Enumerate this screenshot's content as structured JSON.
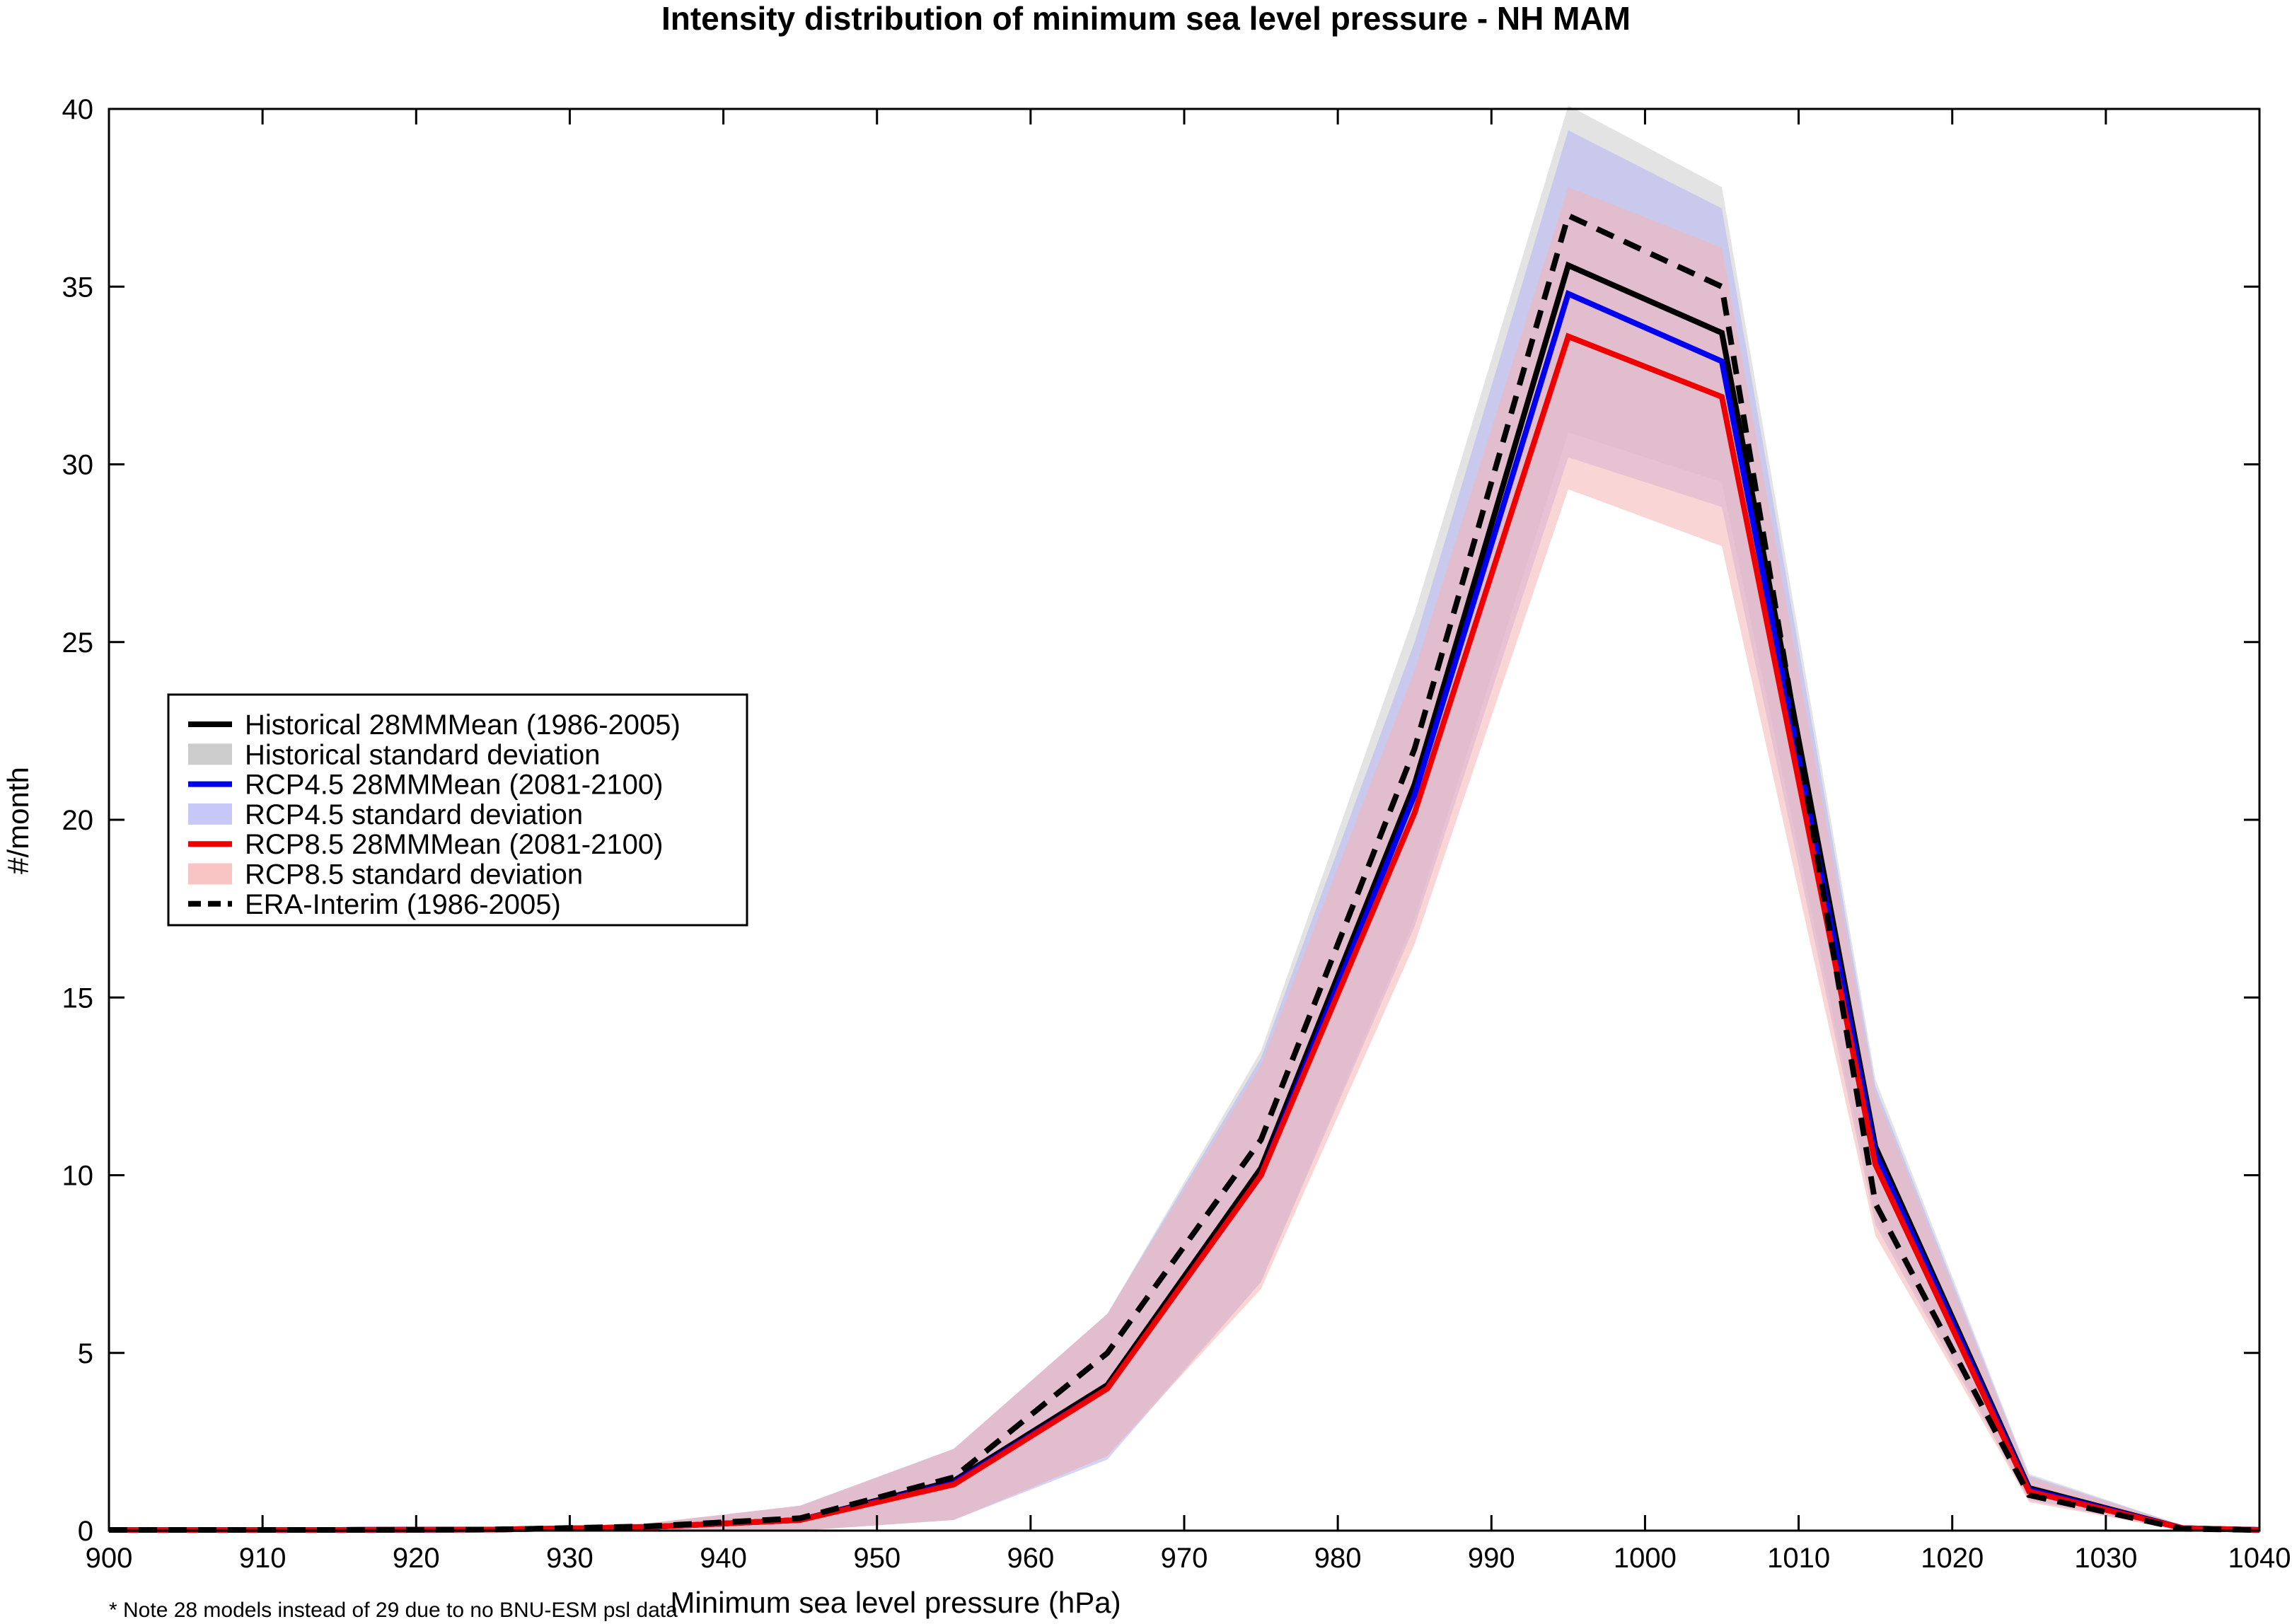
{
  "chart_data": {
    "type": "line",
    "title": "Intensity distribution of minimum sea level pressure - NH MAM",
    "xlabel": "Minimum sea level pressure (hPa)",
    "ylabel": "#/month",
    "xlim": [
      900,
      1040
    ],
    "ylim": [
      0,
      40
    ],
    "xticks": [
      900,
      910,
      920,
      930,
      940,
      950,
      960,
      970,
      980,
      990,
      1000,
      1010,
      1020,
      1030,
      1040
    ],
    "yticks": [
      0,
      5,
      10,
      15,
      20,
      25,
      30,
      35,
      40
    ],
    "grid": false,
    "legend_position": "middle-left",
    "note": "* Note 28 models instead of 29 due to no BNU-ESM psl data",
    "x": [
      900,
      905,
      915,
      925,
      935,
      945,
      955,
      965,
      975,
      985,
      995,
      1005,
      1015,
      1025,
      1035,
      1040
    ],
    "bands": [
      {
        "name": "Historical standard deviation",
        "color": "#cccccc",
        "opacity": 0.55,
        "lower": [
          0,
          0,
          0,
          0,
          0,
          0,
          0.3,
          2.1,
          7.0,
          17.2,
          30.9,
          29.5,
          8.8,
          0.9,
          0,
          0
        ],
        "upper": [
          0.05,
          0.05,
          0.05,
          0.05,
          0.2,
          0.7,
          2.3,
          6.1,
          13.5,
          25.8,
          40.1,
          37.8,
          12.7,
          1.6,
          0.15,
          0.05
        ]
      },
      {
        "name": "RCP4.5 standard deviation",
        "color": "#b8b8f5",
        "opacity": 0.6,
        "lower": [
          0,
          0,
          0,
          0,
          0,
          0,
          0.3,
          2.0,
          7.0,
          17.0,
          30.2,
          28.8,
          8.6,
          0.85,
          0,
          0
        ],
        "upper": [
          0.05,
          0.05,
          0.05,
          0.05,
          0.2,
          0.7,
          2.3,
          6.1,
          13.3,
          25.0,
          39.4,
          37.2,
          12.5,
          1.55,
          0.15,
          0.05
        ]
      },
      {
        "name": "RCP8.5 standard deviation",
        "color": "#f5b3b3",
        "opacity": 0.55,
        "lower": [
          0,
          0,
          0,
          0,
          0,
          0,
          0.3,
          2.1,
          6.8,
          16.5,
          29.3,
          27.7,
          8.3,
          0.8,
          0,
          0
        ],
        "upper": [
          0.05,
          0.05,
          0.05,
          0.05,
          0.2,
          0.7,
          2.3,
          6.1,
          13.1,
          24.2,
          37.8,
          36.1,
          12.3,
          1.5,
          0.15,
          0.05
        ]
      }
    ],
    "series": [
      {
        "name": "Historical 28MMMean (1986-2005)",
        "color": "#000000",
        "dash": "solid",
        "values": [
          0.02,
          0.02,
          0.02,
          0.03,
          0.1,
          0.3,
          1.4,
          4.1,
          10.2,
          21.0,
          35.6,
          33.7,
          10.8,
          1.2,
          0.07,
          0.02
        ]
      },
      {
        "name": "RCP4.5 28MMMean (2081-2100)",
        "color": "#0000ee",
        "dash": "solid",
        "values": [
          0.02,
          0.02,
          0.02,
          0.03,
          0.1,
          0.3,
          1.35,
          4.0,
          10.0,
          20.7,
          34.8,
          32.9,
          10.6,
          1.15,
          0.07,
          0.02
        ]
      },
      {
        "name": "RCP8.5 28MMMean (2081-2100)",
        "color": "#ee0000",
        "dash": "solid",
        "values": [
          0.02,
          0.02,
          0.02,
          0.03,
          0.1,
          0.3,
          1.3,
          4.0,
          10.0,
          20.2,
          33.6,
          31.9,
          10.3,
          1.1,
          0.07,
          0.02
        ]
      },
      {
        "name": "ERA-Interim (1986-2005)",
        "color": "#000000",
        "dash": "dashed",
        "values": [
          0.02,
          0.02,
          0.02,
          0.03,
          0.12,
          0.35,
          1.5,
          5.0,
          11.0,
          22.0,
          37.0,
          35.0,
          9.2,
          1.0,
          0.05,
          0.02
        ]
      }
    ],
    "legend": [
      {
        "label": "Historical 28MMMean (1986-2005)",
        "kind": "line",
        "color": "#000000",
        "dash": "solid"
      },
      {
        "label": "Historical standard deviation",
        "kind": "patch",
        "color": "#cccccc"
      },
      {
        "label": "RCP4.5 28MMMean (2081-2100)",
        "kind": "line",
        "color": "#0000ee",
        "dash": "solid"
      },
      {
        "label": "RCP4.5 standard deviation",
        "kind": "patch",
        "color": "#c8c8f8"
      },
      {
        "label": "RCP8.5 28MMMean (2081-2100)",
        "kind": "line",
        "color": "#ee0000",
        "dash": "solid"
      },
      {
        "label": "RCP8.5 standard deviation",
        "kind": "patch",
        "color": "#f8c4c4"
      },
      {
        "label": "ERA-Interim (1986-2005)",
        "kind": "line",
        "color": "#000000",
        "dash": "dashed"
      }
    ]
  }
}
